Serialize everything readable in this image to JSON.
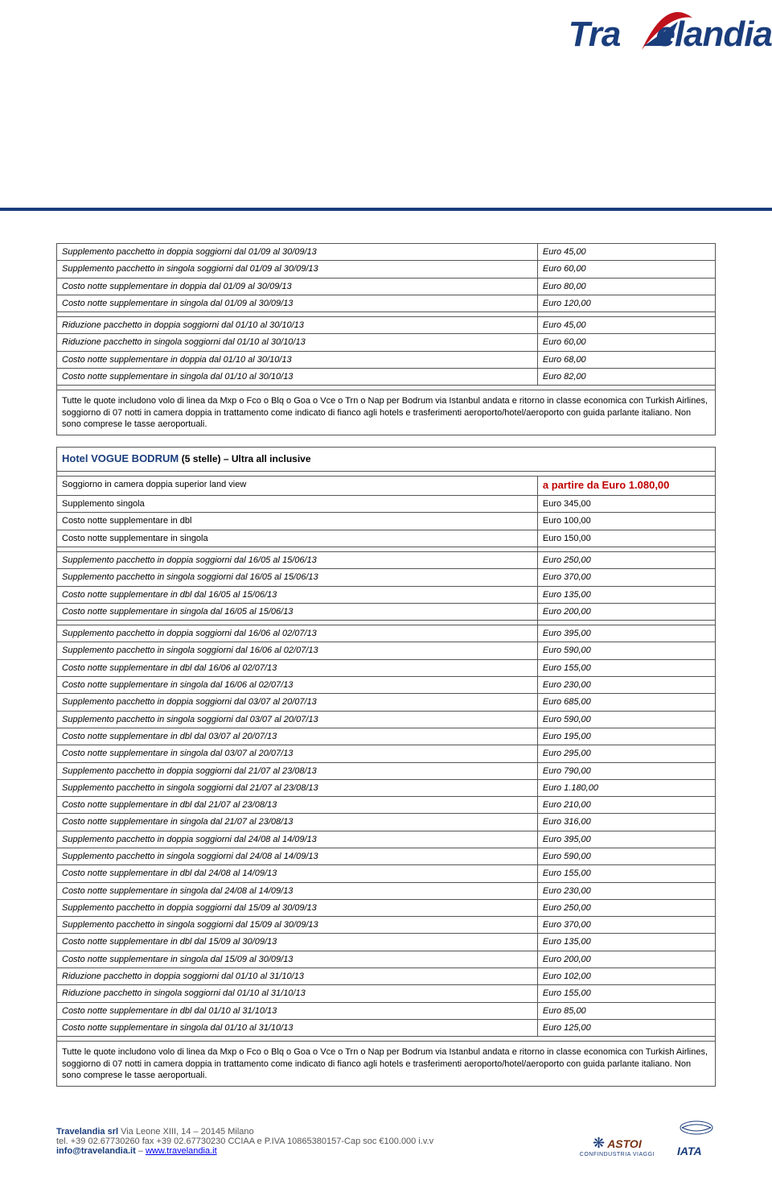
{
  "logo": {
    "part1": "Tra",
    "part2": "elandia"
  },
  "block1": {
    "rows_a": [
      {
        "label": "Supplemento pacchetto in doppia soggiorni dal 01/09 al 30/09/13",
        "value": "Euro   45,00",
        "italic": true
      },
      {
        "label": "Supplemento pacchetto in singola soggiorni dal 01/09 al 30/09/13",
        "value": "Euro   60,00",
        "italic": true
      },
      {
        "label": "Costo notte supplementare in doppia dal 01/09 al 30/09/13",
        "value": "Euro   80,00",
        "italic": true
      },
      {
        "label": "Costo notte supplementare in singola dal 01/09 al 30/09/13",
        "value": "Euro   120,00",
        "italic": true
      }
    ],
    "rows_b": [
      {
        "label": "Riduzione pacchetto in doppia soggiorni dal 01/10 al 30/10/13",
        "value": "Euro   45,00",
        "italic": true
      },
      {
        "label": "Riduzione pacchetto in singola soggiorni dal 01/10 al 30/10/13",
        "value": "Euro   60,00",
        "italic": true
      },
      {
        "label": "Costo notte supplementare in doppia dal 01/10 al 30/10/13",
        "value": "Euro   68,00",
        "italic": true
      },
      {
        "label": "Costo notte supplementare in singola dal 01/10 al 30/10/13",
        "value": "Euro   82,00",
        "italic": true
      }
    ],
    "note": "Tutte le quote includono volo di linea da Mxp o Fco o Blq o Goa o Vce o Trn o Nap  per Bodrum via Istanbul andata e ritorno  in classe economica con Turkish Airlines,  soggiorno di 07 notti in camera doppia in trattamento come indicato di fianco agli hotels e trasferimenti aeroporto/hotel/aeroporto con guida parlante italiano. Non sono comprese le tasse aeroportuali."
  },
  "block2": {
    "hotel_name": "Hotel VOGUE BODRUM ",
    "hotel_sub": "(5 stelle) – Ultra all inclusive",
    "head": [
      {
        "label": "Soggiorno in camera doppia superior land view",
        "value_prefix": "a partire da Euro ",
        "value_price": "1.080,00"
      },
      {
        "label": "Supplemento singola",
        "value": "Euro  345,00"
      },
      {
        "label": "Costo notte supplementare in dbl",
        "value": "Euro  100,00"
      },
      {
        "label": "Costo notte supplementare in singola",
        "value": "Euro  150,00"
      }
    ],
    "rows_a": [
      {
        "label": "Supplemento pacchetto in doppia soggiorni dal 16/05 al 15/06/13",
        "value": "Euro  250,00",
        "italic": true
      },
      {
        "label": "Supplemento pacchetto in singola soggiorni dal 16/05 al 15/06/13",
        "value": "Euro  370,00",
        "italic": true
      },
      {
        "label": "Costo notte supplementare in dbl dal 16/05 al 15/06/13",
        "value": "Euro  135,00",
        "italic": true
      },
      {
        "label": "Costo notte supplementare in singola dal 16/05 al 15/06/13",
        "value": "Euro  200,00",
        "italic": true
      }
    ],
    "rows_b": [
      {
        "label": "Supplemento pacchetto in doppia soggiorni dal 16/06 al 02/07/13",
        "value": "Euro  395,00",
        "italic": true
      },
      {
        "label": "Supplemento pacchetto in singola soggiorni dal 16/06 al 02/07/13",
        "value": "Euro  590,00",
        "italic": true
      },
      {
        "label": "Costo notte supplementare in dbl dal 16/06 al 02/07/13",
        "value": "Euro  155,00",
        "italic": true
      },
      {
        "label": "Costo notte supplementare in singola dal 16/06 al 02/07/13",
        "value": "Euro  230,00",
        "italic": true
      },
      {
        "label": "Supplemento pacchetto in doppia soggiorni dal 03/07 al 20/07/13",
        "value": "Euro  685,00",
        "italic": true
      },
      {
        "label": "Supplemento pacchetto in singola soggiorni dal 03/07 al 20/07/13",
        "value": "Euro  590,00",
        "italic": true
      },
      {
        "label": "Costo notte supplementare in dbl dal 03/07 al 20/07/13",
        "value": "Euro  195,00",
        "italic": true
      },
      {
        "label": "Costo notte supplementare in singola dal 03/07 al 20/07/13",
        "value": "Euro  295,00",
        "italic": true
      },
      {
        "label": "Supplemento pacchetto in doppia soggiorni dal 21/07 al 23/08/13",
        "value": "Euro  790,00",
        "italic": true
      },
      {
        "label": "Supplemento pacchetto in singola soggiorni dal 21/07 al 23/08/13",
        "value": "Euro  1.180,00",
        "italic": true
      },
      {
        "label": "Costo notte supplementare in dbl dal 21/07 al 23/08/13",
        "value": "Euro  210,00",
        "italic": true
      },
      {
        "label": "Costo notte supplementare in singola dal 21/07 al 23/08/13",
        "value": "Euro  316,00",
        "italic": true
      },
      {
        "label": "Supplemento pacchetto in doppia soggiorni dal 24/08 al 14/09/13",
        "value": "Euro  395,00",
        "italic": true
      },
      {
        "label": "Supplemento pacchetto in singola soggiorni dal 24/08 al 14/09/13",
        "value": "Euro  590,00",
        "italic": true
      },
      {
        "label": "Costo notte supplementare in dbl dal 24/08 al 14/09/13",
        "value": "Euro  155,00",
        "italic": true
      },
      {
        "label": "Costo notte supplementare in singola dal 24/08 al 14/09/13",
        "value": "Euro  230,00",
        "italic": true
      },
      {
        "label": " Supplemento pacchetto in doppia soggiorni dal 15/09 al 30/09/13",
        "value": "Euro  250,00",
        "italic": true
      },
      {
        "label": "Supplemento pacchetto in singola soggiorni dal 15/09 al 30/09/13",
        "value": "Euro  370,00",
        "italic": true
      },
      {
        "label": "Costo notte supplementare in dbl dal 15/09 al 30/09/13",
        "value": "Euro  135,00",
        "italic": true
      },
      {
        "label": "Costo notte supplementare in singola dal 15/09 al 30/09/13",
        "value": "Euro  200,00",
        "italic": true
      },
      {
        "label": "Riduzione pacchetto in doppia soggiorni dal 01/10 al 31/10/13",
        "value": "Euro  102,00",
        "italic": true
      },
      {
        "label": "Riduzione pacchetto in singola soggiorni dal 01/10 al 31/10/13",
        "value": "Euro  155,00",
        "italic": true
      },
      {
        "label": "Costo notte supplementare in dbl dal 01/10 al 31/10/13",
        "value": "Euro  85,00",
        "italic": true
      },
      {
        "label": "Costo notte supplementare in singola dal 01/10 al 31/10/13",
        "value": "Euro  125,00",
        "italic": true
      }
    ],
    "note": "Tutte le quote includono volo di linea da Mxp o Fco o Blq o Goa o Vce o Trn o Nap  per Bodrum via Istanbul andata e ritorno  in classe economica con Turkish Airlines,  soggiorno di 07 notti in camera doppia in trattamento come indicato di fianco agli hotels e trasferimenti aeroporto/hotel/aeroporto con guida parlante italiano. Non sono comprese le tasse aeroportuali."
  },
  "footer": {
    "line1_company": "Travelandia srl",
    "line1_rest": "  Via Leone XIII, 14 – 20145 Milano",
    "line2": "tel. +39 02.67730260 fax +39 02.67730230 CCIAA e P.IVA 10865380157-Cap soc €100.000 i.v.v",
    "email": "info@travelandia.it",
    "sep": " – ",
    "url": "www.travelandia.it",
    "astoi": "ASTOI",
    "astoi_sub": "CONFINDUSTRIA VIAGGI",
    "iata": "IATA"
  }
}
